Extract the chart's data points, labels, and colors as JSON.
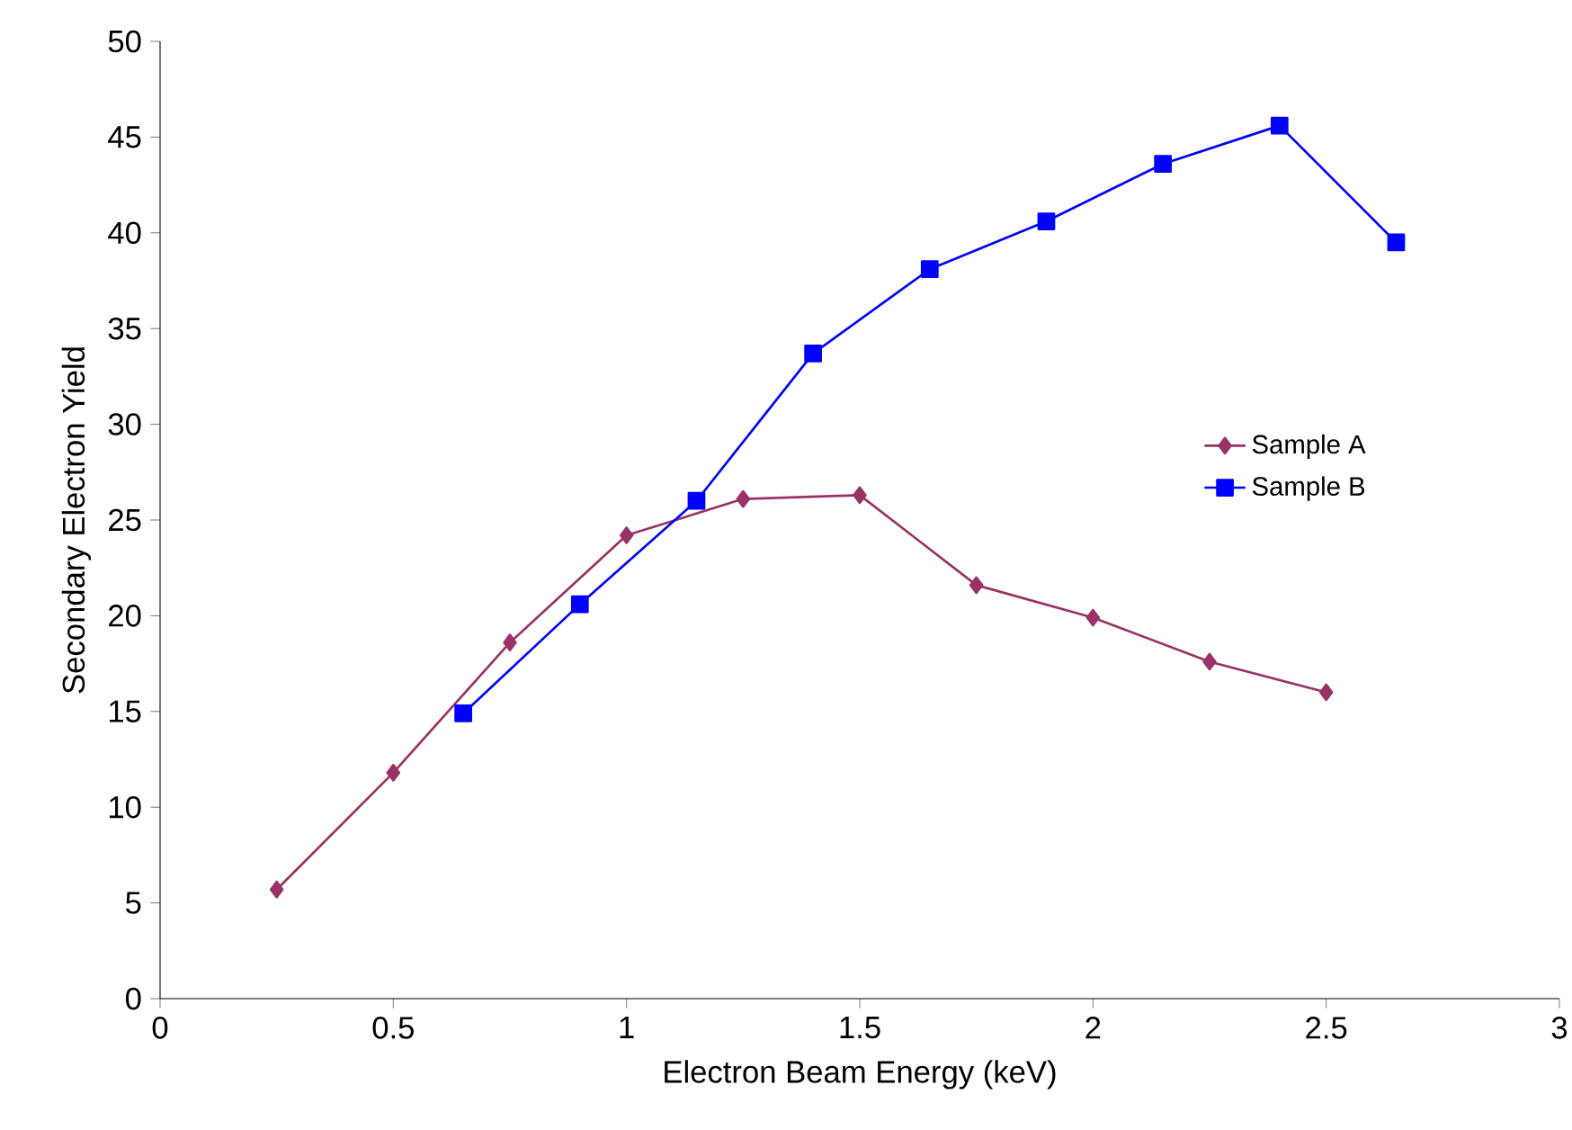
{
  "chart_data": {
    "type": "line",
    "xlabel": "Electron Beam Energy (keV)",
    "ylabel": "Secondary Electron Yield",
    "xlim": [
      0,
      3
    ],
    "xticks": [
      0,
      0.5,
      1,
      1.5,
      2,
      2.5,
      3
    ],
    "ylim": [
      0,
      50
    ],
    "yticks": [
      0,
      5,
      10,
      15,
      20,
      25,
      30,
      35,
      40,
      45,
      50
    ],
    "grid": false,
    "legend": "right",
    "line_style": "solid",
    "series": [
      {
        "name": "Sample A",
        "color": "#993366",
        "marker": "diamond",
        "x": [
          0.25,
          0.5,
          0.75,
          1,
          1.25,
          1.5,
          1.75,
          2,
          2.25,
          2.5
        ],
        "values": [
          5.7,
          11.8,
          18.6,
          24.2,
          26.1,
          26.3,
          21.6,
          19.9,
          17.6,
          16.0
        ]
      },
      {
        "name": "Sample B",
        "color": "#0000ff",
        "marker": "square",
        "x": [
          0.65,
          0.9,
          1.15,
          1.4,
          1.65,
          1.9,
          2.15,
          2.4,
          2.65
        ],
        "values": [
          14.9,
          20.6,
          26.0,
          33.7,
          38.1,
          40.6,
          43.6,
          45.6,
          39.5
        ]
      }
    ]
  }
}
